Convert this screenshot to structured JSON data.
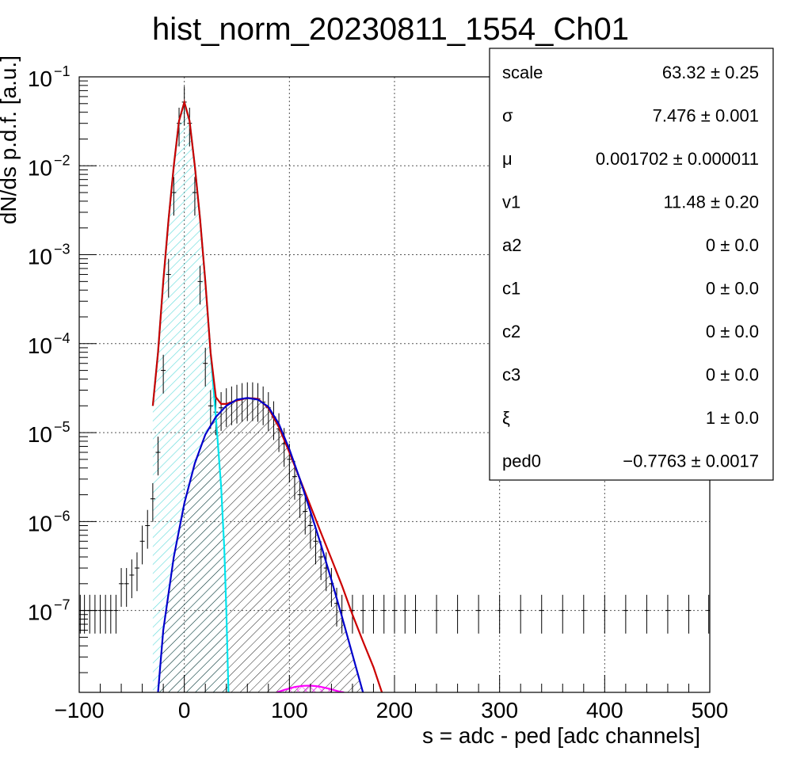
{
  "chart_data": {
    "type": "histogram",
    "title": "hist_norm_20230811_1554_Ch01",
    "xlabel": "s = adc - ped [adc channels]",
    "ylabel": "dN/ds p.d.f. [a.u.]",
    "xlim": [
      -100,
      500
    ],
    "ylim": [
      1.2e-08,
      0.1
    ],
    "yscale": "log",
    "grid": true,
    "x_ticks": [
      {
        "value": -100,
        "label": "−100"
      },
      {
        "value": 0,
        "label": "0"
      },
      {
        "value": 100,
        "label": "100"
      },
      {
        "value": 200,
        "label": "200"
      },
      {
        "value": 300,
        "label": "300"
      },
      {
        "value": 400,
        "label": "400"
      },
      {
        "value": 500,
        "label": "500"
      }
    ],
    "y_ticks": [
      {
        "value": 0.1,
        "label": "10",
        "exp": "−1"
      },
      {
        "value": 0.01,
        "label": "10",
        "exp": "−2"
      },
      {
        "value": 0.001,
        "label": "10",
        "exp": "−3"
      },
      {
        "value": 0.0001,
        "label": "10",
        "exp": "−4"
      },
      {
        "value": 1e-05,
        "label": "10",
        "exp": "−5"
      },
      {
        "value": 1e-06,
        "label": "10",
        "exp": "−6"
      },
      {
        "value": 1e-07,
        "label": "10",
        "exp": "−7"
      }
    ],
    "histogram": {
      "color": "#000000",
      "points": [
        [
          -99,
          1e-07
        ],
        [
          -95,
          1e-07
        ],
        [
          -90,
          1e-07
        ],
        [
          -85,
          1e-07
        ],
        [
          -80,
          1e-07
        ],
        [
          -75,
          1e-07
        ],
        [
          -70,
          1e-07
        ],
        [
          -65,
          1e-07
        ],
        [
          -60,
          2e-07
        ],
        [
          -55,
          2e-07
        ],
        [
          -50,
          2.5e-07
        ],
        [
          -45,
          3e-07
        ],
        [
          -40,
          6e-07
        ],
        [
          -35,
          9e-07
        ],
        [
          -30,
          1.8e-06
        ],
        [
          -25,
          6e-06
        ],
        [
          -20,
          5e-05
        ],
        [
          -15,
          0.0006
        ],
        [
          -10,
          0.005
        ],
        [
          -5,
          0.03
        ],
        [
          0,
          0.052
        ],
        [
          5,
          0.03
        ],
        [
          10,
          0.005
        ],
        [
          15,
          0.0005
        ],
        [
          20,
          6e-05
        ],
        [
          25,
          2e-05
        ],
        [
          30,
          1.7e-05
        ],
        [
          35,
          1.9e-05
        ],
        [
          40,
          2.1e-05
        ],
        [
          45,
          2.2e-05
        ],
        [
          50,
          2.3e-05
        ],
        [
          55,
          2.4e-05
        ],
        [
          60,
          2.45e-05
        ],
        [
          65,
          2.45e-05
        ],
        [
          70,
          2.4e-05
        ],
        [
          75,
          2.2e-05
        ],
        [
          80,
          1.9e-05
        ],
        [
          85,
          1.5e-05
        ],
        [
          90,
          1.1e-05
        ],
        [
          95,
          7.5e-06
        ],
        [
          100,
          5e-06
        ],
        [
          105,
          3.2e-06
        ],
        [
          110,
          2e-06
        ],
        [
          115,
          1.3e-06
        ],
        [
          120,
          9e-07
        ],
        [
          125,
          6e-07
        ],
        [
          130,
          4e-07
        ],
        [
          135,
          3e-07
        ],
        [
          140,
          2e-07
        ],
        [
          145,
          1.2e-07
        ],
        [
          150,
          1e-07
        ],
        [
          160,
          1e-07
        ],
        [
          170,
          1e-07
        ],
        [
          180,
          1e-07
        ],
        [
          190,
          1e-07
        ],
        [
          200,
          1e-07
        ],
        [
          210,
          1e-07
        ],
        [
          220,
          1e-07
        ],
        [
          240,
          1e-07
        ],
        [
          260,
          1e-07
        ],
        [
          280,
          1e-07
        ],
        [
          300,
          1e-07
        ],
        [
          320,
          1e-07
        ],
        [
          340,
          1e-07
        ],
        [
          360,
          1e-07
        ],
        [
          380,
          1e-07
        ],
        [
          400,
          1e-07
        ],
        [
          420,
          1e-07
        ],
        [
          440,
          1e-07
        ],
        [
          460,
          1e-07
        ],
        [
          480,
          1e-07
        ],
        [
          499,
          1e-07
        ]
      ]
    },
    "curves": [
      {
        "color": "#00e5ee",
        "fill": "hatched",
        "points": [
          [
            -30,
            2e-05
          ],
          [
            -25,
            8e-05
          ],
          [
            -20,
            0.0005
          ],
          [
            -15,
            0.0025
          ],
          [
            -10,
            0.01
          ],
          [
            -5,
            0.032
          ],
          [
            0,
            0.052
          ],
          [
            5,
            0.032
          ],
          [
            10,
            0.01
          ],
          [
            15,
            0.0025
          ],
          [
            20,
            0.0005
          ],
          [
            25,
            8e-05
          ],
          [
            30,
            1.5e-05
          ],
          [
            35,
            2.5e-06
          ],
          [
            38,
            5e-07
          ],
          [
            40,
            1e-07
          ],
          [
            42,
            1.2e-08
          ]
        ]
      },
      {
        "color": "#cc0000",
        "fill": "none",
        "points": [
          [
            -30,
            2e-05
          ],
          [
            -25,
            8e-05
          ],
          [
            -20,
            0.0005
          ],
          [
            -15,
            0.0025
          ],
          [
            -10,
            0.01
          ],
          [
            -5,
            0.032
          ],
          [
            0,
            0.052
          ],
          [
            5,
            0.032
          ],
          [
            10,
            0.01
          ],
          [
            15,
            0.0025
          ],
          [
            20,
            0.0005
          ],
          [
            25,
            8e-05
          ],
          [
            30,
            2.5e-05
          ],
          [
            35,
            2.1e-05
          ],
          [
            40,
            2.1e-05
          ],
          [
            50,
            2.3e-05
          ],
          [
            60,
            2.45e-05
          ],
          [
            70,
            2.4e-05
          ],
          [
            80,
            1.9e-05
          ],
          [
            90,
            1.15e-05
          ],
          [
            100,
            6e-06
          ],
          [
            110,
            3e-06
          ],
          [
            120,
            1.5e-06
          ],
          [
            130,
            7.5e-07
          ],
          [
            140,
            3.8e-07
          ],
          [
            150,
            1.9e-07
          ],
          [
            160,
            9e-08
          ],
          [
            170,
            4.5e-08
          ],
          [
            180,
            2.3e-08
          ],
          [
            188,
            1.2e-08
          ]
        ]
      },
      {
        "color": "#0000cc",
        "fill": "hatched",
        "points": [
          [
            -25,
            1.2e-08
          ],
          [
            -20,
            6e-08
          ],
          [
            -10,
            4e-07
          ],
          [
            0,
            1.6e-06
          ],
          [
            10,
            4.5e-06
          ],
          [
            20,
            9.5e-06
          ],
          [
            30,
            1.5e-05
          ],
          [
            40,
            2e-05
          ],
          [
            50,
            2.35e-05
          ],
          [
            60,
            2.45e-05
          ],
          [
            70,
            2.35e-05
          ],
          [
            80,
            1.95e-05
          ],
          [
            90,
            1.25e-05
          ],
          [
            100,
            6.5e-06
          ],
          [
            110,
            3e-06
          ],
          [
            120,
            1.3e-06
          ],
          [
            130,
            5.5e-07
          ],
          [
            140,
            2.2e-07
          ],
          [
            150,
            8.5e-08
          ],
          [
            160,
            3.2e-08
          ],
          [
            170,
            1.2e-08
          ]
        ]
      },
      {
        "color": "#ff00ff",
        "fill": "hatched",
        "points": [
          [
            88,
            1.2e-08
          ],
          [
            95,
            1.28e-08
          ],
          [
            105,
            1.38e-08
          ],
          [
            112,
            1.42e-08
          ],
          [
            120,
            1.43e-08
          ],
          [
            128,
            1.4e-08
          ],
          [
            138,
            1.32e-08
          ],
          [
            148,
            1.22e-08
          ],
          [
            152,
            1.2e-08
          ]
        ]
      }
    ],
    "stats_box": {
      "entries": [
        {
          "name": "scale",
          "value": "63.32 ± 0.25"
        },
        {
          "name": "σ",
          "value": "7.476 ± 0.001"
        },
        {
          "name": "μ",
          "value": "0.001702 ± 0.000011"
        },
        {
          "name": "v1",
          "value": "11.48 ± 0.20"
        },
        {
          "name": "a2",
          "value": "0 ± 0.0"
        },
        {
          "name": "c1",
          "value": "0 ± 0.0"
        },
        {
          "name": "c2",
          "value": "0 ± 0.0"
        },
        {
          "name": "c3",
          "value": "0 ± 0.0"
        },
        {
          "name": "ξ",
          "value": "1 ± 0.0"
        },
        {
          "name": "ped0",
          "value": "−0.7763 ± 0.0017"
        }
      ]
    }
  }
}
